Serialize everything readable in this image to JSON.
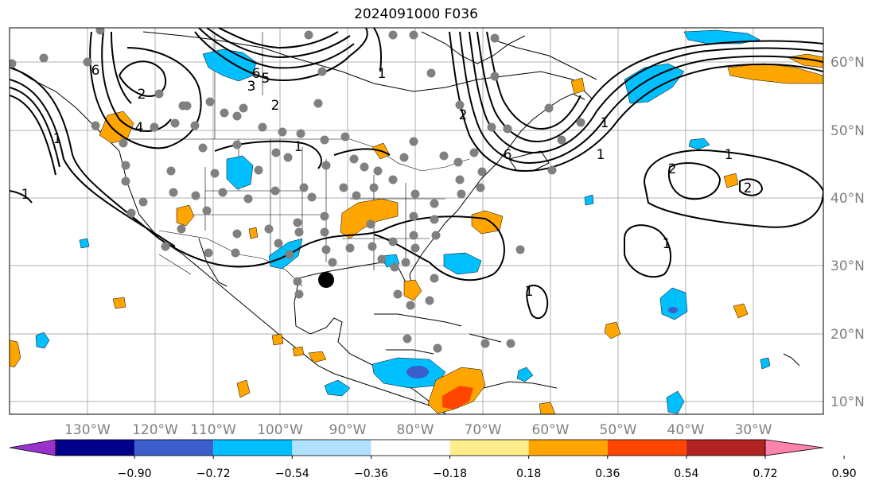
{
  "title": "2024091000 F036",
  "map": {
    "lon_labels": [
      "130°W",
      "120°W",
      "110°W",
      "100°W",
      "90°W",
      "80°W",
      "70°W",
      "60°W",
      "50°W",
      "40°W",
      "30°W"
    ],
    "lat_labels": [
      "60°N",
      "50°N",
      "40°N",
      "30°N",
      "20°N",
      "10°N"
    ],
    "contour_labels": [
      "6",
      "2",
      "4",
      "1",
      "6",
      "5",
      "3",
      "1",
      "2",
      "6",
      "1",
      "1",
      "1",
      "2",
      "2",
      "1",
      "1",
      "1",
      "2",
      "1"
    ],
    "grid": true,
    "label_color": "#808080",
    "storm_marker": "large black dot"
  },
  "colorbar": {
    "ticks": [
      "−0.90",
      "−0.72",
      "−0.54",
      "−0.36",
      "−0.18",
      "0.18",
      "0.36",
      "0.54",
      "0.72",
      "0.90"
    ],
    "colors": [
      "#9932cc",
      "#00008b",
      "#3a5fcd",
      "#00bfff",
      "#b0e2ff",
      "#ffffff",
      "#ffec8b",
      "#ffa500",
      "#ff4500",
      "#b22222",
      "#ff82ab"
    ],
    "extend": "both"
  }
}
